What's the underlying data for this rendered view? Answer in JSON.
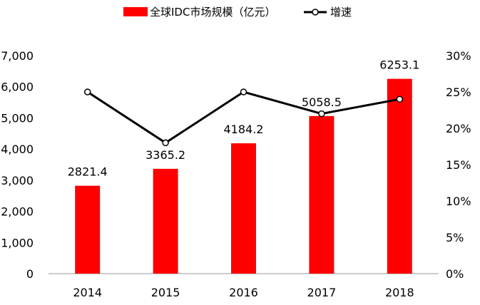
{
  "legend": {
    "bar_label": "全球IDC市场规模（亿元）",
    "line_label": "增速"
  },
  "chart_data": {
    "type": "bar",
    "categories": [
      "2014",
      "2015",
      "2016",
      "2017",
      "2018"
    ],
    "series": [
      {
        "name": "全球IDC市场规模（亿元）",
        "type": "bar",
        "axis": "left",
        "values": [
          2821.4,
          3365.2,
          4184.2,
          5058.5,
          6253.1
        ],
        "value_labels": [
          "2821.4",
          "3365.2",
          "4184.2",
          "5058.5",
          "6253.1"
        ],
        "color": "#ff0000"
      },
      {
        "name": "增速",
        "type": "line",
        "axis": "right",
        "values": [
          25,
          18,
          25,
          22,
          24
        ],
        "color": "#000000",
        "marker": "open-circle"
      }
    ],
    "y_left": {
      "min": 0,
      "max": 7000,
      "ticks": [
        0,
        1000,
        2000,
        3000,
        4000,
        5000,
        6000,
        7000
      ],
      "tick_labels": [
        "0",
        "1,000",
        "2,000",
        "3,000",
        "4,000",
        "5,000",
        "6,000",
        "7,000"
      ]
    },
    "y_right": {
      "min": 0,
      "max": 30,
      "ticks": [
        0,
        5,
        10,
        15,
        20,
        25,
        30
      ],
      "tick_labels": [
        "0%",
        "5%",
        "10%",
        "15%",
        "20%",
        "25%",
        "30%"
      ]
    },
    "grid": false,
    "legend_position": "top"
  }
}
